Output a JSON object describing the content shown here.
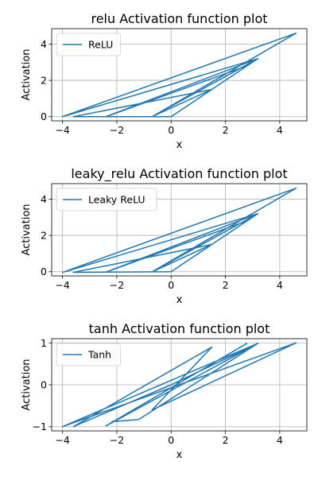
{
  "chart_data": [
    {
      "type": "line",
      "title": "relu Activation function plot",
      "xlabel": "x",
      "ylabel": "Activation",
      "xlim": [
        -4.4,
        5.0
      ],
      "ylim": [
        -0.23,
        4.85
      ],
      "xticks": [
        -4,
        -2,
        0,
        2,
        4
      ],
      "xtick_labels": [
        "−4",
        "−2",
        "0",
        "2",
        "4"
      ],
      "yticks": [
        0,
        2,
        4
      ],
      "ytick_labels": [
        "0",
        "2",
        "4"
      ],
      "grid": true,
      "legend_position": "top-left",
      "series": [
        {
          "name": "ReLU",
          "color": "#1f77b4",
          "x": [
            2.8,
            -2.4,
            3.2,
            -4.0,
            4.6,
            -0.7,
            1.5,
            -3.6,
            0.0,
            3.2,
            -0.7
          ],
          "y": [
            2.8,
            0.0,
            3.2,
            0.0,
            4.6,
            0.0,
            1.5,
            0.0,
            0.0,
            3.2,
            0.0
          ]
        }
      ]
    },
    {
      "type": "line",
      "title": "leaky_relu Activation function plot",
      "xlabel": "x",
      "ylabel": "Activation",
      "xlim": [
        -4.4,
        5.0
      ],
      "ylim": [
        -0.23,
        4.85
      ],
      "xticks": [
        -4,
        -2,
        0,
        2,
        4
      ],
      "xtick_labels": [
        "−4",
        "−2",
        "0",
        "2",
        "4"
      ],
      "yticks": [
        0,
        2,
        4
      ],
      "ytick_labels": [
        "0",
        "2",
        "4"
      ],
      "grid": true,
      "legend_position": "top-left",
      "series": [
        {
          "name": "Leaky ReLU",
          "color": "#1f77b4",
          "x": [
            2.8,
            -2.4,
            3.2,
            -4.0,
            4.6,
            -0.7,
            1.5,
            -3.6,
            0.0,
            3.2,
            -0.7
          ],
          "y": [
            2.8,
            -0.024,
            3.2,
            -0.04,
            4.6,
            -0.007,
            1.5,
            -0.036,
            0.0,
            3.2,
            -0.007
          ]
        }
      ]
    },
    {
      "type": "line",
      "title": "tanh Activation function plot",
      "xlabel": "x",
      "ylabel": "Activation",
      "xlim": [
        -4.4,
        5.0
      ],
      "ylim": [
        -1.1,
        1.1
      ],
      "xticks": [
        -4,
        -2,
        0,
        2,
        4
      ],
      "xtick_labels": [
        "−4",
        "−2",
        "0",
        "2",
        "4"
      ],
      "yticks": [
        -1,
        0,
        1
      ],
      "ytick_labels": [
        "−1",
        "0",
        "1"
      ],
      "grid": true,
      "legend_position": "top-left",
      "series": [
        {
          "name": "Tanh",
          "color": "#1f77b4",
          "x": [
            2.8,
            -2.4,
            3.2,
            -4.0,
            4.6,
            -0.7,
            1.5,
            -3.6,
            0.0,
            3.2,
            -1.2,
            -2.2
          ],
          "y": [
            0.99,
            -0.98,
            0.99,
            -0.999,
            0.999,
            -0.6,
            0.9,
            -0.998,
            0.0,
            0.99,
            -0.83,
            -0.88
          ]
        }
      ]
    }
  ]
}
